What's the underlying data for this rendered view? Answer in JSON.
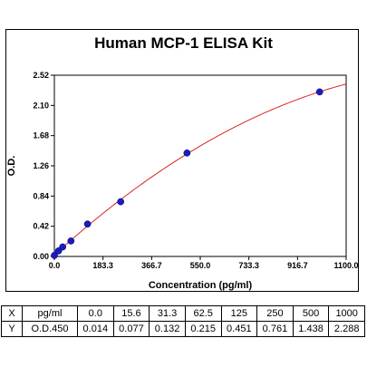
{
  "chart_data": {
    "type": "scatter",
    "title": "Human MCP-1 ELISA Kit",
    "xlabel": "Concentration (pg/ml)",
    "ylabel": "O.D.",
    "xlim": [
      0,
      1100
    ],
    "ylim": [
      0,
      2.52
    ],
    "x_ticks": [
      "0.0",
      "183.3",
      "366.7",
      "550.0",
      "733.3",
      "916.7",
      "1100.0"
    ],
    "y_ticks": [
      "0.00",
      "0.42",
      "0.84",
      "1.26",
      "1.68",
      "2.10",
      "2.52"
    ],
    "x_tick_values": [
      0,
      183.3,
      366.7,
      550.0,
      733.3,
      916.7,
      1100.0
    ],
    "y_tick_values": [
      0,
      0.42,
      0.84,
      1.26,
      1.68,
      2.1,
      2.52
    ],
    "series": [
      {
        "x": [
          0.0,
          15.6,
          31.3,
          62.5,
          125,
          250,
          500,
          1000
        ],
        "y": [
          0.014,
          0.077,
          0.132,
          0.215,
          0.451,
          0.761,
          1.438,
          2.288
        ]
      }
    ],
    "fit_curve": true,
    "colors": {
      "points": "#1a1acc",
      "curve": "#dd2222"
    }
  },
  "table": {
    "rows": [
      [
        "X",
        "pg/ml",
        "0.0",
        "15.6",
        "31.3",
        "62.5",
        "125",
        "250",
        "500",
        "1000"
      ],
      [
        "Y",
        "O.D.450",
        "0.014",
        "0.077",
        "0.132",
        "0.215",
        "0.451",
        "0.761",
        "1.438",
        "2.288"
      ]
    ]
  }
}
